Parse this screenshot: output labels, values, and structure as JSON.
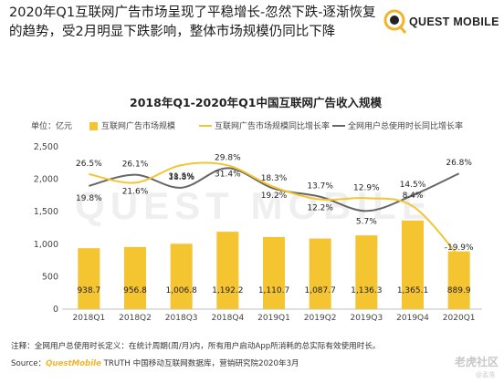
{
  "header": {
    "headline": "2020年Q1互联网广告市场呈现了平稳增长-忽然下跌-逐渐恢复的趋势，受2月明显下跌影响，整体市场规模仍同比下降",
    "logo_text": "QUEST MOBILE"
  },
  "chart_data": {
    "type": "bar+line",
    "title": "2018年Q1-2020年Q1中国互联网广告收入规模",
    "unit_label": "单位：亿元",
    "categories": [
      "2018Q1",
      "2018Q2",
      "2018Q3",
      "2018Q4",
      "2019Q1",
      "2019Q2",
      "2019Q3",
      "2019Q4",
      "2020Q1"
    ],
    "ylim": [
      0,
      2500
    ],
    "yticks": [
      "0",
      "500",
      "1,000",
      "1,500",
      "2,000",
      "2,500"
    ],
    "grid": false,
    "legend_position": "top",
    "series": [
      {
        "name": "互联网广告市场规模",
        "kind": "bar",
        "color": "#f5c431",
        "values": [
          938.7,
          956.8,
          1006.8,
          1192.2,
          1110.7,
          1087.7,
          1136.3,
          1365.1,
          889.9
        ],
        "labels": [
          "938.7",
          "956.8",
          "1,006.8",
          "1,192.2",
          "1,110.7",
          "1,087.7",
          "1,136.3",
          "1,365.1",
          "889.9"
        ]
      },
      {
        "name": "互联网广告市场规模同比增长率",
        "kind": "line",
        "color": "#f5c431",
        "values": [
          26.5,
          21.6,
          31.5,
          31.4,
          19.2,
          12.2,
          12.9,
          8.4,
          -19.9
        ],
        "labels": [
          "26.5%",
          "21.6%",
          "31.5%",
          "31.4%",
          "19.2%",
          "12.2%",
          "12.9%",
          "8.4%",
          "-19.9%"
        ]
      },
      {
        "name": "全网用户总使用时长同比增长率",
        "kind": "line",
        "color": "#666666",
        "values": [
          19.8,
          26.1,
          18.8,
          29.8,
          18.3,
          13.7,
          5.7,
          14.5,
          26.8
        ],
        "labels": [
          "19.8%",
          "26.1%",
          "18.8%",
          "29.8%",
          "18.3%",
          "13.7%",
          "5.7%",
          "14.5%",
          "26.8%"
        ]
      }
    ]
  },
  "footer": {
    "note": "注释：全网用户总使用时长定义：在统计周期(周/月)内，所有用户启动App所消耗的总实际有效使用时长。",
    "source_prefix": "Source：",
    "source_brand": "QuestMobile",
    "source_rest": " TRUTH 中国移动互联网数据库，营销研究院2020年3月"
  },
  "watermark": {
    "big": "QUEST MOBILE",
    "site": "老虎社区",
    "handle": "@孟浩"
  },
  "colors": {
    "accent": "#f5c431",
    "gray_line": "#666666",
    "axis": "#bfbfbf"
  }
}
